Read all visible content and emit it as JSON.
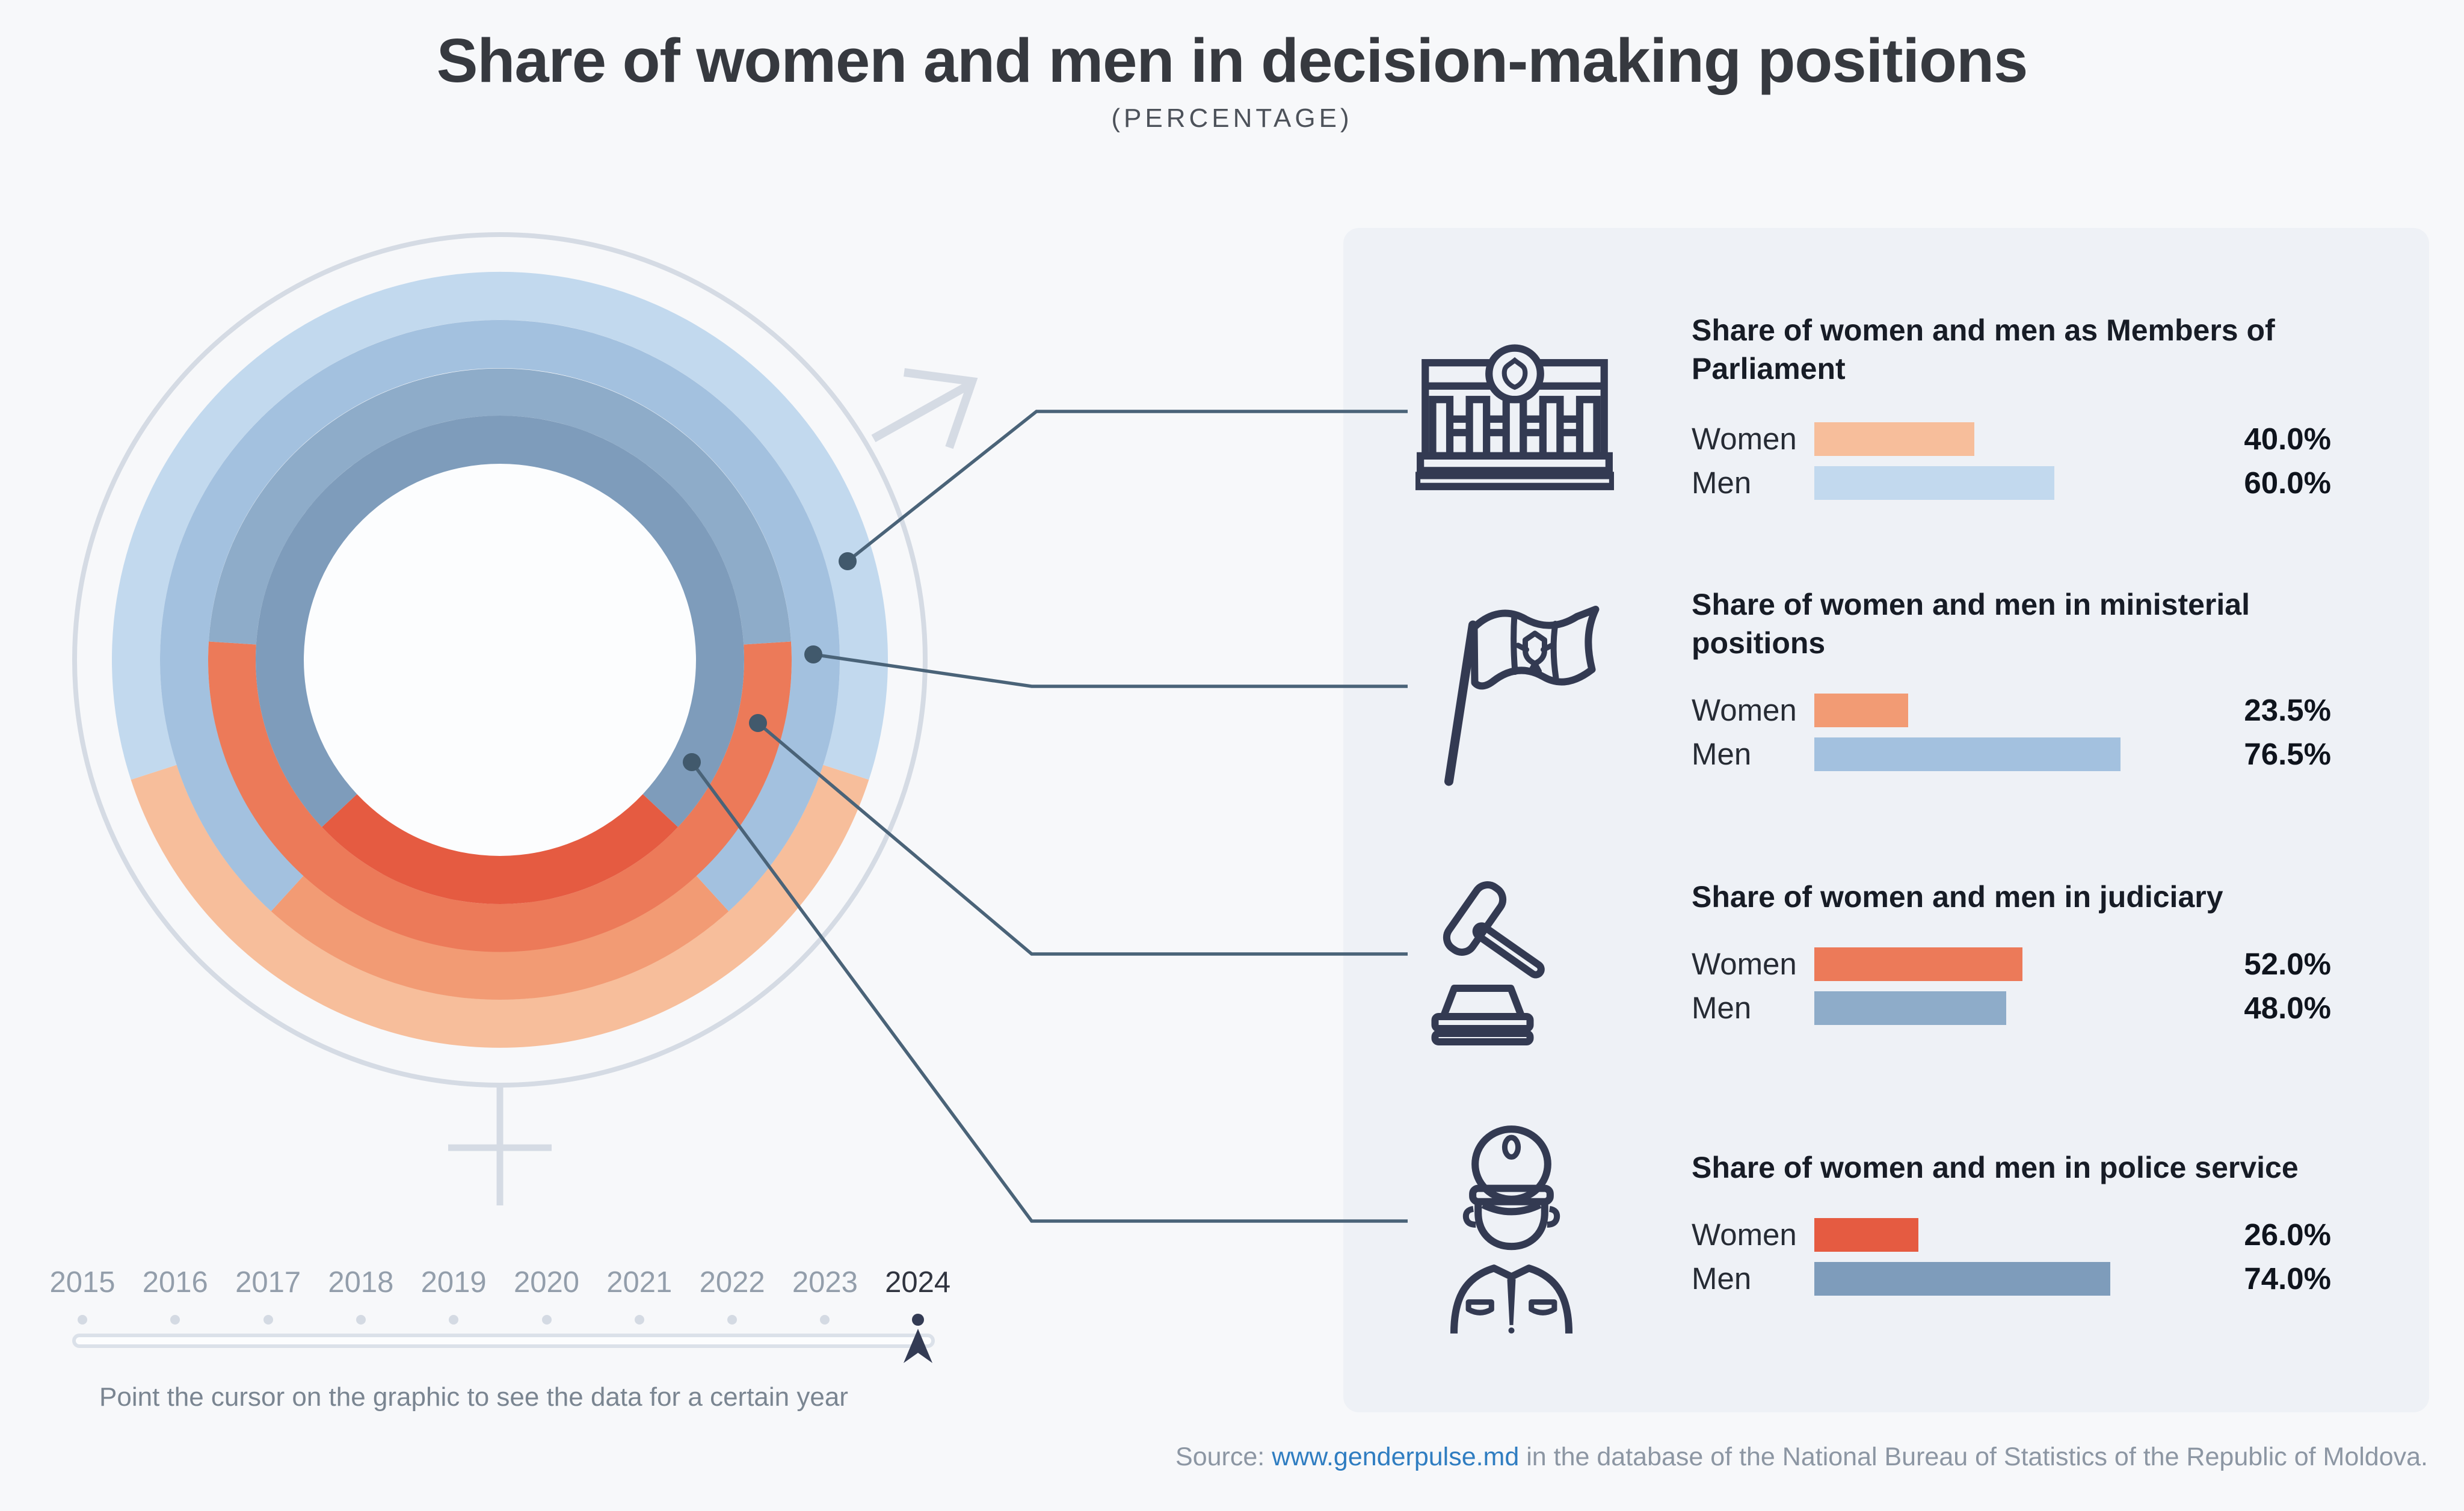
{
  "title": "Share of women and men in decision-making positions",
  "subtitle": "(PERCENTAGE)",
  "chart_data": {
    "type": "donut",
    "unit": "percent",
    "rings_order": "outer ring = first category, inner ring = last category; women segment centered at bottom of each ring",
    "legend": {
      "women": "Women",
      "men": "Men"
    },
    "categories": [
      {
        "id": "parliament",
        "title": "Share of women and men as Members of Parliament",
        "title_lines": [
          "Share of women and men as Members of",
          "Parliament"
        ],
        "icon": "parliament-icon",
        "women": 40.0,
        "men": 60.0,
        "women_color": "#F7BE9B",
        "men_color": "#C2D9EE"
      },
      {
        "id": "ministerial",
        "title": "Share of women and men in ministerial positions",
        "title_lines": [
          "Share of women and men in ministerial",
          "positions"
        ],
        "icon": "moldova-flag-icon",
        "women": 23.5,
        "men": 76.5,
        "women_color": "#F29B74",
        "men_color": "#A3C1DF"
      },
      {
        "id": "judiciary",
        "title": "Share of women and men in judiciary",
        "title_lines": [
          "Share of women and men in judiciary"
        ],
        "icon": "gavel-icon",
        "women": 52.0,
        "men": 48.0,
        "women_color": "#EC7A59",
        "men_color": "#8EACC9"
      },
      {
        "id": "police",
        "title": "Share of women and men in police service",
        "title_lines": [
          "Share of women and men in police service"
        ],
        "icon": "police-officer-icon",
        "women": 26.0,
        "men": 74.0,
        "women_color": "#E55B41",
        "men_color": "#7E9CBB"
      }
    ]
  },
  "timeline": {
    "years": [
      2015,
      2016,
      2017,
      2018,
      2019,
      2020,
      2021,
      2022,
      2023,
      2024
    ],
    "active_year": 2024,
    "note": "Point the cursor on the graphic to see the data for a certain year"
  },
  "source": {
    "prefix": "Source: ",
    "link": "www.genderpulse.md",
    "suffix": " in the database of the National Bureau of Statistics of the Republic of Moldova."
  },
  "colors": {
    "page_bg": "#F7F8FA",
    "panel_bg": "#EEF1F6",
    "connector": "#4A6378",
    "decorative": "#D5DBE4",
    "icon": "#333A52",
    "link": "#2F7DC1",
    "active_year": "#333B54"
  }
}
